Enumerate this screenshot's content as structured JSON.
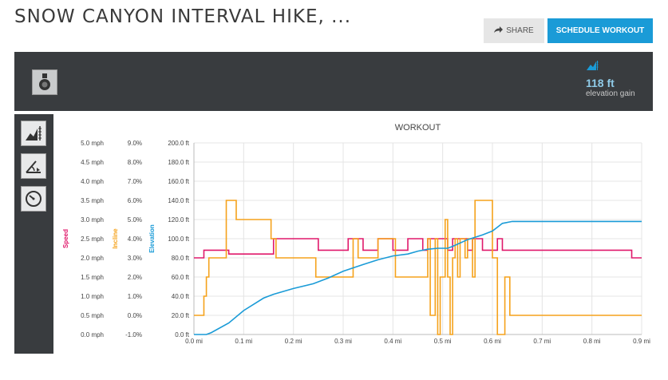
{
  "header": {
    "title": "SNOW CANYON INTERVAL HIKE, ...",
    "share_label": "SHARE",
    "schedule_label": "SCHEDULE WORKOUT"
  },
  "banner": {
    "elevation_value": "118 ft",
    "elevation_label": "elevation gain"
  },
  "rail": {
    "icons": [
      "elevation-chart-icon",
      "incline-icon",
      "speedometer-icon"
    ]
  },
  "colors": {
    "speed": "#e0196b",
    "incline": "#f5a21b",
    "elevation": "#1a9bd7",
    "accent": "#1a9bd7"
  },
  "chart_data": {
    "type": "line",
    "title": "WORKOUT",
    "xlabel": "",
    "x_ticks": [
      "0.0 mi",
      "0.1 mi",
      "0.2 mi",
      "0.3 mi",
      "0.4 mi",
      "0.5 mi",
      "0.6 mi",
      "0.7 mi",
      "0.8 mi",
      "0.9 mi"
    ],
    "xlim": [
      0,
      0.9
    ],
    "axes": [
      {
        "label": "Speed",
        "color": "#e0196b",
        "ticks": [
          "0.0 mph",
          "0.5 mph",
          "1.0 mph",
          "1.5 mph",
          "2.0 mph",
          "2.5 mph",
          "3.0 mph",
          "3.5 mph",
          "4.0 mph",
          "4.5 mph",
          "5.0 mph"
        ],
        "ylim": [
          0,
          5
        ]
      },
      {
        "label": "Incline",
        "color": "#f5a21b",
        "ticks": [
          "-1.0%",
          "0.0%",
          "1.0%",
          "2.0%",
          "3.0%",
          "4.0%",
          "5.0%",
          "6.0%",
          "7.0%",
          "8.0%",
          "9.0%"
        ],
        "ylim": [
          -1,
          9
        ]
      },
      {
        "label": "Elevation",
        "color": "#1a9bd7",
        "ticks": [
          "0.0 ft",
          "20.0 ft",
          "40.0 ft",
          "60.0 ft",
          "80.0 ft",
          "100.0 ft",
          "120.0 ft",
          "140.0 ft",
          "160.0 ft",
          "180.0 ft",
          "200.0 ft"
        ],
        "ylim": [
          0,
          200
        ]
      }
    ],
    "grid": true,
    "series": [
      {
        "name": "Speed",
        "step": true,
        "x": [
          0,
          0.02,
          0.07,
          0.16,
          0.25,
          0.31,
          0.34,
          0.37,
          0.4,
          0.43,
          0.46,
          0.47,
          0.51,
          0.52,
          0.55,
          0.56,
          0.58,
          0.61,
          0.62,
          0.74,
          0.88,
          0.9
        ],
        "y": [
          2.0,
          2.2,
          2.1,
          2.5,
          2.2,
          2.5,
          2.2,
          2.5,
          2.2,
          2.5,
          2.2,
          2.5,
          2.2,
          2.5,
          2.2,
          2.5,
          2.2,
          2.5,
          2.2,
          2.2,
          2.0,
          2.0
        ]
      },
      {
        "name": "Incline",
        "step": true,
        "x": [
          0,
          0.02,
          0.025,
          0.03,
          0.065,
          0.085,
          0.155,
          0.165,
          0.2,
          0.24,
          0.245,
          0.32,
          0.33,
          0.36,
          0.37,
          0.4,
          0.405,
          0.43,
          0.47,
          0.475,
          0.485,
          0.49,
          0.495,
          0.505,
          0.51,
          0.515,
          0.52,
          0.525,
          0.53,
          0.535,
          0.545,
          0.55,
          0.56,
          0.565,
          0.595,
          0.6,
          0.61,
          0.62,
          0.625,
          0.635,
          0.64,
          0.74,
          0.75,
          0.765,
          0.77,
          0.775,
          0.78,
          0.785,
          0.79,
          0.8,
          0.82,
          0.87,
          0.9
        ],
        "y": [
          0.0,
          1.0,
          2.0,
          3.0,
          6.0,
          5.0,
          4.0,
          3.0,
          3.0,
          3.0,
          2.0,
          4.0,
          3.0,
          3.0,
          4.0,
          4.0,
          2.0,
          2.0,
          4.0,
          0.0,
          4.0,
          -1.0,
          2.0,
          5.0,
          2.0,
          -1.0,
          3.0,
          4.0,
          2.0,
          4.0,
          3.0,
          4.0,
          2.0,
          6.0,
          6.0,
          3.0,
          -1.0,
          -1.0,
          2.0,
          0.0,
          0.0,
          0.0,
          0.0,
          0.0,
          0.0,
          0.0,
          0.0,
          0.0,
          0.0,
          0.0,
          0.0,
          0.0,
          0.0
        ]
      },
      {
        "name": "Elevation",
        "step": false,
        "x": [
          0,
          0.025,
          0.035,
          0.07,
          0.1,
          0.14,
          0.16,
          0.2,
          0.24,
          0.27,
          0.3,
          0.34,
          0.37,
          0.4,
          0.43,
          0.45,
          0.47,
          0.49,
          0.51,
          0.52,
          0.55,
          0.58,
          0.6,
          0.61,
          0.62,
          0.64,
          0.7,
          0.8,
          0.9
        ],
        "y": [
          0,
          0,
          2,
          12,
          25,
          38,
          42,
          48,
          53,
          59,
          66,
          73,
          78,
          82,
          84,
          87,
          89,
          90,
          90,
          92,
          99,
          104,
          108,
          112,
          116,
          118,
          118,
          118,
          118
        ]
      }
    ]
  }
}
